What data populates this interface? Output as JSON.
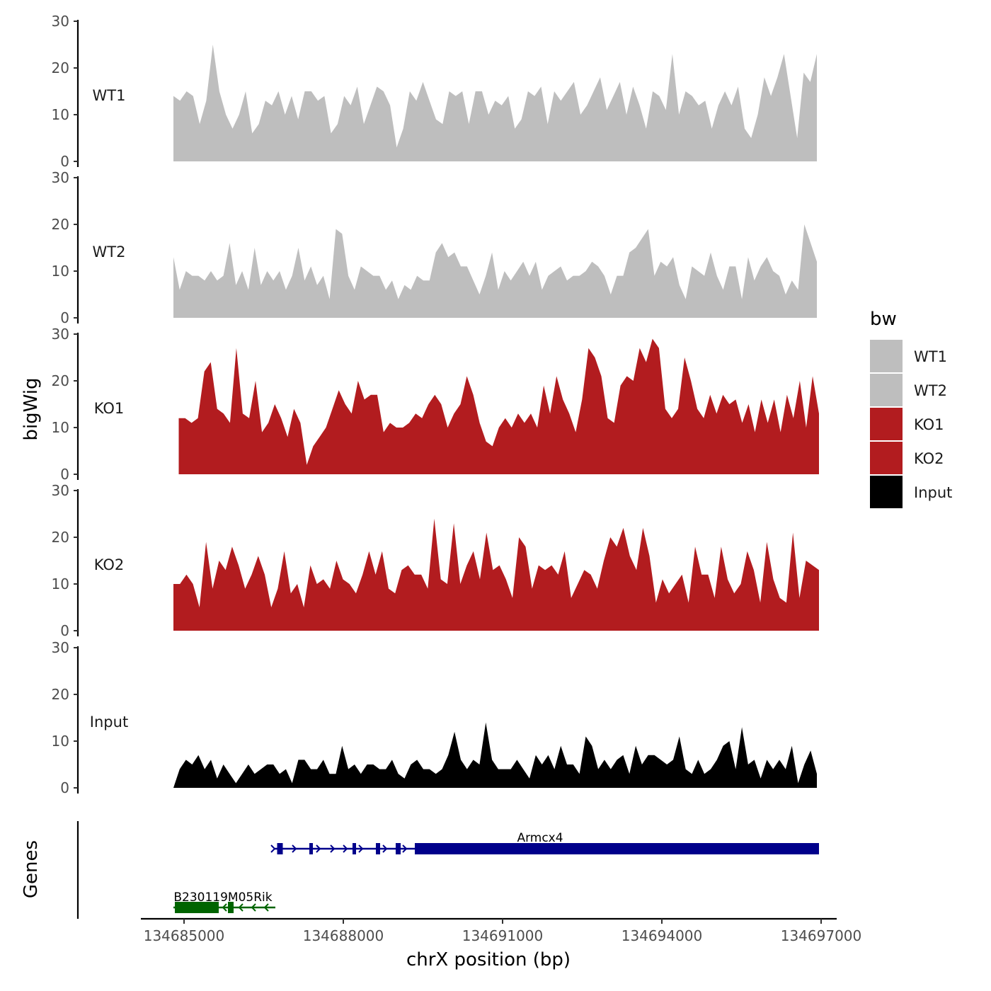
{
  "chart_data": {
    "type": "area",
    "ylabel": "bigWig",
    "xlabel": "chrX position (bp)",
    "genes_label": "Genes",
    "legend": {
      "title": "bw",
      "position": "right",
      "entries": [
        {
          "label": "WT1",
          "color": "#bebebe"
        },
        {
          "label": "WT2",
          "color": "#bebebe"
        },
        {
          "label": "KO1",
          "color": "#b21c1f"
        },
        {
          "label": "KO2",
          "color": "#b21c1f"
        },
        {
          "label": "Input",
          "color": "#000000"
        }
      ]
    },
    "ylim": [
      0,
      30
    ],
    "y_ticks": [
      0,
      10,
      20,
      30
    ],
    "y_tick_labels": [
      "0",
      "10",
      "20",
      "30"
    ],
    "xlim": [
      134683000,
      134697400
    ],
    "x_ticks": [
      134685000,
      134688000,
      134691000,
      134694000,
      134697000
    ],
    "x_tick_labels": [
      "134685000",
      "134688000",
      "134691000",
      "134694000",
      "134697000"
    ],
    "series": [
      {
        "name": "WT1",
        "color": "#bebebe",
        "x_start": 134684800,
        "x_end": 134696920,
        "values": [
          14,
          13,
          15,
          14,
          8,
          13,
          25,
          15,
          10,
          7,
          10,
          15,
          6,
          8,
          13,
          12,
          15,
          10,
          14,
          9,
          15,
          15,
          13,
          14,
          6,
          8,
          14,
          12,
          16,
          8,
          12,
          16,
          15,
          12,
          3,
          7,
          15,
          13,
          17,
          13,
          9,
          8,
          15,
          14,
          15,
          8,
          15,
          15,
          10,
          13,
          12,
          14,
          7,
          9,
          15,
          14,
          16,
          8,
          15,
          13,
          15,
          17,
          10,
          12,
          15,
          18,
          11,
          14,
          17,
          10,
          16,
          12,
          7,
          15,
          14,
          11,
          23,
          10,
          15,
          14,
          12,
          13,
          7,
          12,
          15,
          12,
          16,
          7,
          5,
          10,
          18,
          14,
          18,
          23,
          14,
          5,
          19,
          17,
          23
        ]
      },
      {
        "name": "WT2",
        "color": "#bebebe",
        "x_start": 134684800,
        "x_end": 134696920,
        "values": [
          13,
          6,
          10,
          9,
          9,
          8,
          10,
          8,
          9,
          16,
          7,
          10,
          6,
          15,
          7,
          10,
          8,
          10,
          6,
          9,
          15,
          8,
          11,
          7,
          9,
          4,
          19,
          18,
          9,
          6,
          11,
          10,
          9,
          9,
          6,
          8,
          4,
          7,
          6,
          9,
          8,
          8,
          14,
          16,
          13,
          14,
          11,
          11,
          8,
          5,
          9,
          14,
          6,
          10,
          8,
          10,
          12,
          9,
          12,
          6,
          9,
          10,
          11,
          8,
          9,
          9,
          10,
          12,
          11,
          9,
          5,
          9,
          9,
          14,
          15,
          17,
          19,
          9,
          12,
          11,
          13,
          7,
          4,
          11,
          10,
          9,
          14,
          9,
          6,
          11,
          11,
          4,
          13,
          8,
          11,
          13,
          10,
          9,
          5,
          8,
          6,
          20,
          16,
          12
        ]
      },
      {
        "name": "KO1",
        "color": "#b21c1f",
        "x_start": 134684900,
        "x_end": 134696960,
        "values": [
          12,
          12,
          11,
          12,
          22,
          24,
          14,
          13,
          11,
          27,
          13,
          12,
          20,
          9,
          11,
          15,
          12,
          8,
          14,
          11,
          2,
          6,
          8,
          10,
          14,
          18,
          15,
          13,
          20,
          16,
          17,
          17,
          9,
          11,
          10,
          10,
          11,
          13,
          12,
          15,
          17,
          15,
          10,
          13,
          15,
          21,
          17,
          11,
          7,
          6,
          10,
          12,
          10,
          13,
          11,
          13,
          10,
          19,
          13,
          21,
          16,
          13,
          9,
          16,
          27,
          25,
          21,
          12,
          11,
          19,
          21,
          20,
          27,
          24,
          29,
          27,
          14,
          12,
          14,
          25,
          20,
          14,
          12,
          17,
          13,
          17,
          15,
          16,
          11,
          15,
          9,
          16,
          11,
          16,
          9,
          17,
          12,
          20,
          10,
          21,
          13
        ]
      },
      {
        "name": "KO2",
        "color": "#b21c1f",
        "x_start": 134684800,
        "x_end": 134696960,
        "values": [
          10,
          10,
          12,
          10,
          5,
          19,
          9,
          15,
          13,
          18,
          14,
          9,
          12,
          16,
          12,
          5,
          9,
          17,
          8,
          10,
          5,
          14,
          10,
          11,
          9,
          15,
          11,
          10,
          8,
          12,
          17,
          12,
          17,
          9,
          8,
          13,
          14,
          12,
          12,
          9,
          24,
          11,
          10,
          23,
          10,
          14,
          17,
          11,
          21,
          13,
          14,
          11,
          7,
          20,
          18,
          9,
          14,
          13,
          14,
          12,
          17,
          7,
          10,
          13,
          12,
          9,
          15,
          20,
          18,
          22,
          16,
          13,
          22,
          16,
          6,
          11,
          8,
          10,
          12,
          6,
          18,
          12,
          12,
          7,
          18,
          11,
          8,
          10,
          17,
          13,
          6,
          19,
          11,
          7,
          6,
          21,
          7,
          15,
          14,
          13
        ]
      },
      {
        "name": "Input",
        "color": "#000000",
        "x_start": 134684800,
        "x_end": 134696920,
        "values": [
          0,
          4,
          6,
          5,
          7,
          4,
          6,
          2,
          5,
          3,
          1,
          3,
          5,
          3,
          4,
          5,
          5,
          3,
          4,
          1,
          6,
          6,
          4,
          4,
          6,
          3,
          3,
          9,
          4,
          5,
          3,
          5,
          5,
          4,
          4,
          6,
          3,
          2,
          5,
          6,
          4,
          4,
          3,
          4,
          7,
          12,
          6,
          4,
          6,
          5,
          14,
          6,
          4,
          4,
          4,
          6,
          4,
          2,
          7,
          5,
          7,
          4,
          9,
          5,
          5,
          3,
          11,
          9,
          4,
          6,
          4,
          6,
          7,
          3,
          9,
          5,
          7,
          7,
          6,
          5,
          6,
          11,
          4,
          3,
          6,
          3,
          4,
          6,
          9,
          10,
          4,
          13,
          5,
          6,
          2,
          6,
          4,
          6,
          4,
          9,
          1,
          5,
          8,
          3
        ]
      }
    ],
    "genes": [
      {
        "name": "B230119M05Rik",
        "strand": "-",
        "color": "#006400",
        "start": 134684800,
        "end": 134686720
      },
      {
        "name": "Armcx4",
        "strand": "+",
        "color": "#00008b",
        "start": 134686700,
        "end": 134696960
      }
    ]
  }
}
